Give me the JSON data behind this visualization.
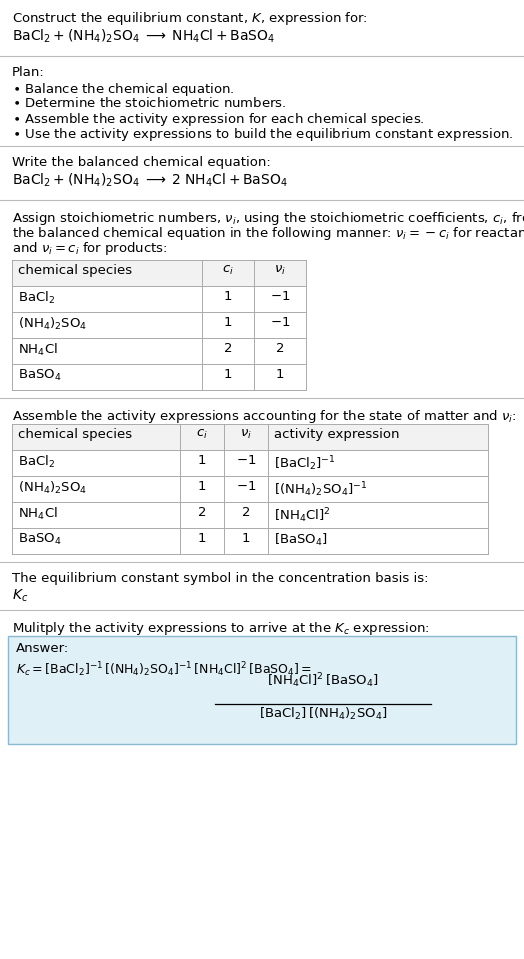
{
  "bg_color": "#ffffff",
  "text_color": "#000000",
  "title_line1": "Construct the equilibrium constant, $K$, expression for:",
  "title_line2": "$\\mathrm{BaCl_2 + (NH_4)_2SO_4 \\;\\longrightarrow\\; NH_4Cl + BaSO_4}$",
  "plan_header": "Plan:",
  "plan_items": [
    "$\\bullet$ Balance the chemical equation.",
    "$\\bullet$ Determine the stoichiometric numbers.",
    "$\\bullet$ Assemble the activity expression for each chemical species.",
    "$\\bullet$ Use the activity expressions to build the equilibrium constant expression."
  ],
  "balanced_header": "Write the balanced chemical equation:",
  "balanced_eq": "$\\mathrm{BaCl_2 + (NH_4)_2SO_4 \\;\\longrightarrow\\; 2\\;NH_4Cl + BaSO_4}$",
  "stoich_lines": [
    "Assign stoichiometric numbers, $\\nu_i$, using the stoichiometric coefficients, $c_i$, from",
    "the balanced chemical equation in the following manner: $\\nu_i = -c_i$ for reactants",
    "and $\\nu_i = c_i$ for products:"
  ],
  "table1_headers": [
    "chemical species",
    "$c_i$",
    "$\\nu_i$"
  ],
  "table1_rows": [
    [
      "$\\mathrm{BaCl_2}$",
      "1",
      "$-1$"
    ],
    [
      "$\\mathrm{(NH_4)_2SO_4}$",
      "1",
      "$-1$"
    ],
    [
      "$\\mathrm{NH_4Cl}$",
      "2",
      "2"
    ],
    [
      "$\\mathrm{BaSO_4}$",
      "1",
      "1"
    ]
  ],
  "activity_header": "Assemble the activity expressions accounting for the state of matter and $\\nu_i$:",
  "table2_headers": [
    "chemical species",
    "$c_i$",
    "$\\nu_i$",
    "activity expression"
  ],
  "table2_rows": [
    [
      "$\\mathrm{BaCl_2}$",
      "1",
      "$-1$",
      "$[\\mathrm{BaCl_2}]^{-1}$"
    ],
    [
      "$\\mathrm{(NH_4)_2SO_4}$",
      "1",
      "$-1$",
      "$[(\\mathrm{NH_4})_2\\mathrm{SO_4}]^{-1}$"
    ],
    [
      "$\\mathrm{NH_4Cl}$",
      "2",
      "2",
      "$[\\mathrm{NH_4Cl}]^{2}$"
    ],
    [
      "$\\mathrm{BaSO_4}$",
      "1",
      "1",
      "$[\\mathrm{BaSO_4}]$"
    ]
  ],
  "kc_symbol_header": "The equilibrium constant symbol in the concentration basis is:",
  "kc_symbol": "$K_c$",
  "multiply_header": "Mulitply the activity expressions to arrive at the $K_c$ expression:",
  "answer_label": "Answer:",
  "answer_box_color": "#dff0f7",
  "answer_box_border": "#8ab8d0",
  "table_header_bg": "#f2f2f2",
  "table_border": "#aaaaaa",
  "font_size": 9.5,
  "section_divider_color": "#bbbbbb"
}
